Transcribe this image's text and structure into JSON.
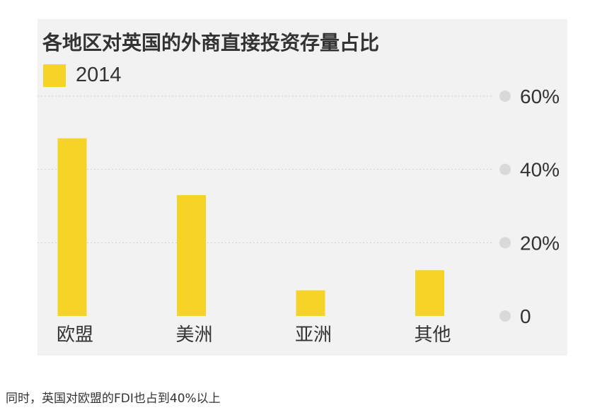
{
  "chart_data": {
    "type": "bar",
    "title": "各地区对英国的外商直接投资存量占比",
    "categories": [
      "欧盟",
      "美洲",
      "亚洲",
      "其他"
    ],
    "series": [
      {
        "name": "2014",
        "values": [
          48.5,
          33,
          7,
          12.5
        ]
      }
    ],
    "ylim": [
      0,
      60
    ],
    "yticks": [
      0,
      20,
      40,
      60
    ],
    "ytick_labels": [
      "0",
      "20%",
      "40%",
      "60%"
    ],
    "y_axis_side": "right",
    "grid": true,
    "legend": "top-left",
    "colors": {
      "bar": "#f5d327",
      "background": "#f2f2f2",
      "grid": "#cfcfcf",
      "tick_dot": "#d9d9d9",
      "text": "#333333"
    }
  },
  "caption": "同时，英国对欧盟的FDI也占到40%以上"
}
